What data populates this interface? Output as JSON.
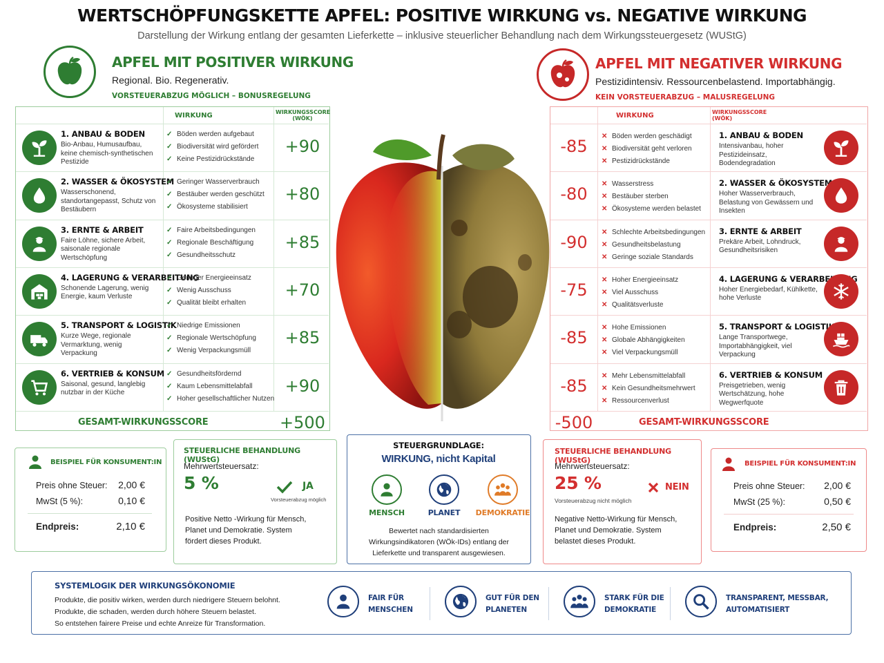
{
  "header": {
    "title": "WERTSCHÖPFUNGSKETTE APFEL: POSITIVE WIRKUNG vs. NEGATIVE WIRKUNG",
    "subtitle": "Darstellung der Wirkung entlang der gesamten Lieferkette – inklusive steuerlicher Behandlung nach dem Wirkungssteuergesetz (WUStG)"
  },
  "positive": {
    "title": "APFEL MIT POSITIVER WIRKUNG",
    "tagline": "Regional. Bio. Regenerativ.",
    "rule": "VORSTEUERABZUG MÖGLICH – BONUSREGELUNG",
    "col_effect": "WIRKUNG",
    "col_score": "WIRKUNGSSCORE (WÖK)",
    "total_label": "GESAMT-WIRKUNGSSCORE",
    "total": "+500",
    "rows": [
      {
        "icon": "seedling-icon",
        "title": "1. ANBAU & BODEN",
        "desc": "Bio-Anbau, Humusaufbau, keine chemisch-synthetischen Pestizide",
        "effects": [
          "Böden werden aufgebaut",
          "Biodiversität wird gefördert",
          "Keine Pestizidrückstände"
        ],
        "score": "+90"
      },
      {
        "icon": "water-drop-icon",
        "title": "2. WASSER & ÖKOSYSTEM",
        "desc": "Wasserschonend, standortangepasst, Schutz von Bestäubern",
        "effects": [
          "Geringer Wasserverbrauch",
          "Bestäuber werden geschützt",
          "Ökosysteme stabilisiert"
        ],
        "score": "+80"
      },
      {
        "icon": "worker-icon",
        "title": "3. ERNTE & ARBEIT",
        "desc": "Faire Löhne, sichere Arbeit, saisonale regionale Wertschöpfung",
        "effects": [
          "Faire Arbeitsbedingungen",
          "Regionale Beschäftigung",
          "Gesundheitsschutz"
        ],
        "score": "+85"
      },
      {
        "icon": "warehouse-icon",
        "title": "4. LAGERUNG & VERARBEITUNG",
        "desc": "Schonende Lagerung, wenig Energie, kaum Verluste",
        "effects": [
          "Geringer Energieeinsatz",
          "Wenig Ausschuss",
          "Qualität bleibt erhalten"
        ],
        "score": "+70"
      },
      {
        "icon": "truck-icon",
        "title": "5. TRANSPORT & LOGISTIK",
        "desc": "Kurze Wege, regionale Vermarktung, wenig Verpackung",
        "effects": [
          "Niedrige Emissionen",
          "Regionale Wertschöpfung",
          "Wenig Verpackungsmüll"
        ],
        "score": "+85"
      },
      {
        "icon": "cart-icon",
        "title": "6. VERTRIEB & KONSUM",
        "desc": "Saisonal, gesund, langlebig nutzbar in der Küche",
        "effects": [
          "Gesundheitsfördernd",
          "Kaum Lebensmittelabfall",
          "Hoher gesellschaftlicher Nutzen"
        ],
        "score": "+90"
      }
    ]
  },
  "negative": {
    "title": "APFEL MIT NEGATIVER WIRKUNG",
    "tagline": "Pestizidintensiv. Ressourcenbelastend. Importabhängig.",
    "rule": "KEIN VORSTEUERABZUG – MALUSREGELUNG",
    "col_effect": "WIRKUNG",
    "col_score": "WIRKUNGSSCORE (WÖK)",
    "total_label": "GESAMT-WIRKUNGSSCORE",
    "total": "-500",
    "rows": [
      {
        "icon": "seedling-icon",
        "title": "1. ANBAU & BODEN",
        "desc": "Intensivanbau, hoher Pestizideinsatz, Bodendegradation",
        "effects": [
          "Böden werden geschädigt",
          "Biodiversität geht verloren",
          "Pestizidrückstände"
        ],
        "score": "-85"
      },
      {
        "icon": "water-drop-icon",
        "title": "2. WASSER & ÖKOSYSTEM",
        "desc": "Hoher Wasserverbrauch, Belastung von Gewässern und Insekten",
        "effects": [
          "Wasserstress",
          "Bestäuber sterben",
          "Ökosysteme werden belastet"
        ],
        "score": "-80"
      },
      {
        "icon": "worker-icon",
        "title": "3. ERNTE & ARBEIT",
        "desc": "Prekäre Arbeit, Lohndruck, Gesundheitsrisiken",
        "effects": [
          "Schlechte Arbeitsbedingungen",
          "Gesundheitsbelastung",
          "Geringe soziale Standards"
        ],
        "score": "-90"
      },
      {
        "icon": "snowflake-icon",
        "title": "4. LAGERUNG & VERARBEITUNG",
        "desc": "Hoher Energiebedarf, Kühlkette, hohe Verluste",
        "effects": [
          "Hoher Energieeinsatz",
          "Viel Ausschuss",
          "Qualitätsverluste"
        ],
        "score": "-75"
      },
      {
        "icon": "ship-icon",
        "title": "5. TRANSPORT & LOGISTIK",
        "desc": "Lange Transportwege, Importabhängigkeit, viel Verpackung",
        "effects": [
          "Hohe Emissionen",
          "Globale Abhängigkeiten",
          "Viel Verpackungsmüll"
        ],
        "score": "-85"
      },
      {
        "icon": "trash-icon",
        "title": "6. VERTRIEB & KONSUM",
        "desc": "Preisgetrieben, wenig Wertschätzung, hohe Wegwerfquote",
        "effects": [
          "Mehr Lebensmittelabfall",
          "Kein Gesundheitsmehrwert",
          "Ressourcenverlust"
        ],
        "score": "-85"
      }
    ]
  },
  "consumer_pos": {
    "title": "BEISPIEL FÜR KONSUMENT:IN",
    "price_label": "Preis ohne Steuer:",
    "price": "2,00 €",
    "vat_label": "MwSt (5 %):",
    "vat": "0,10 €",
    "end_label": "Endpreis:",
    "end": "2,10 €"
  },
  "tax_pos": {
    "title": "STEUERLICHE BEHANDLUNG (WUStG)",
    "rate_label": "Mehrwertsteuersatz:",
    "rate": "5 %",
    "decision": "JA",
    "note": "Vorsteuerabzug möglich",
    "text": "Positive Netto -Wirkung für Mensch, Planet und Demokratie. System fördert dieses Produkt."
  },
  "basis": {
    "title": "STEUERGRUNDLAGE:",
    "subtitle": "WIRKUNG, nicht Kapital",
    "items": [
      {
        "icon": "person-icon",
        "label": "MENSCH",
        "color": "#2e7d32"
      },
      {
        "icon": "globe-icon",
        "label": "PLANET",
        "color": "#1f3f7a"
      },
      {
        "icon": "group-icon",
        "label": "DEMOKRATIE",
        "color": "#e07b28"
      }
    ],
    "text": "Bewertet nach standardisierten Wirkungsindikatoren (WÖk-IDs) entlang der Lieferkette und transparent ausgewiesen."
  },
  "tax_neg": {
    "title": "STEUERLICHE BEHANDLUNG (WUStG)",
    "rate_label": "Mehrwertsteuersatz:",
    "rate": "25 %",
    "decision": "NEIN",
    "note": "Vorsteuerabzug nicht möglich",
    "text": "Negative Netto-Wirkung für Mensch, Planet und Demokratie. System belastet dieses Produkt."
  },
  "consumer_neg": {
    "title": "BEISPIEL FÜR KONSUMENT:IN",
    "price_label": "Preis ohne Steuer:",
    "price": "2,00 €",
    "vat_label": "MwSt (25 %):",
    "vat": "0,50 €",
    "end_label": "Endpreis:",
    "end": "2,50 €"
  },
  "system": {
    "title": "SYSTEMLOGIK DER WIRKUNGSÖKONOMIE",
    "lines": [
      "Produkte, die positiv wirken, werden durch niedrigere Steuern belohnt.",
      "Produkte, die schaden, werden durch höhere Steuern belastet.",
      "So entstehen fairere Preise und echte Anreize für Transformation."
    ],
    "pillars": [
      {
        "icon": "person-icon",
        "label": "FAIR FÜR MENSCHEN"
      },
      {
        "icon": "globe-icon",
        "label": "GUT FÜR DEN PLANETEN"
      },
      {
        "icon": "group-icon",
        "label": "STARK FÜR DIE DEMOKRATIE"
      },
      {
        "icon": "magnifier-icon",
        "label": "TRANSPARENT, MESSBAR, AUTOMATISIERT"
      }
    ]
  }
}
